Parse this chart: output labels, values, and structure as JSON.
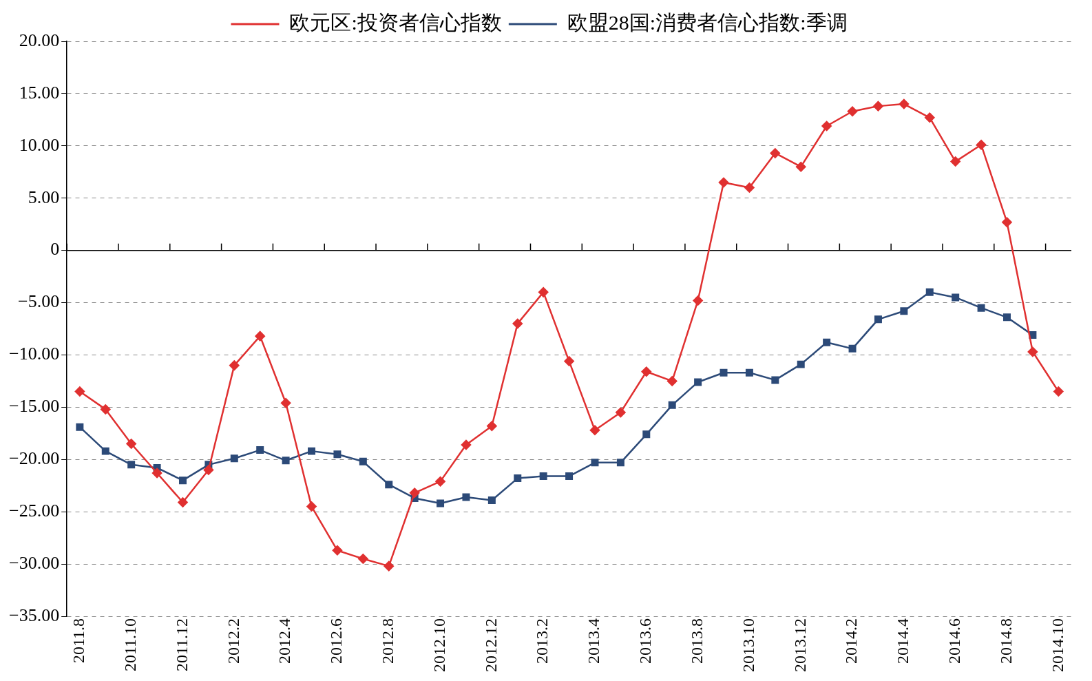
{
  "chart_data": {
    "type": "line",
    "categories": [
      "2011.8",
      null,
      "2011.10",
      null,
      "2011.12",
      null,
      "2012.2",
      null,
      "2012.4",
      null,
      "2012.6",
      null,
      "2012.8",
      null,
      "2012.10",
      null,
      "2012.12",
      null,
      "2013.2",
      null,
      "2013.4",
      null,
      "2013.6",
      null,
      "2013.8",
      null,
      "2013.10",
      null,
      "2013.12",
      null,
      "2014.2",
      null,
      "2014.4",
      null,
      "2014.6",
      null,
      "2014.8",
      null,
      "2014.10"
    ],
    "series": [
      {
        "name": "欧元区:投资者信心指数",
        "color": "#e03030",
        "marker": "diamond",
        "values": [
          -13.5,
          -15.2,
          -18.5,
          -21.3,
          -24.1,
          -21.0,
          -11.0,
          -8.2,
          -14.6,
          -24.5,
          -28.7,
          -29.5,
          -30.2,
          -23.2,
          -22.1,
          -18.6,
          -16.8,
          -7.0,
          -4.0,
          -10.6,
          -17.2,
          -15.5,
          -11.6,
          -12.5,
          -4.8,
          6.5,
          6.0,
          9.3,
          8.0,
          11.9,
          13.3,
          13.8,
          14.0,
          12.7,
          8.5,
          10.1,
          2.7,
          -9.7,
          -13.5
        ]
      },
      {
        "name": "欧盟28国:消费者信心指数:季调",
        "color": "#2c4a78",
        "marker": "square",
        "values": [
          -16.9,
          -19.2,
          -20.5,
          -20.8,
          -22.0,
          -20.5,
          -19.9,
          -19.1,
          -20.1,
          -19.2,
          -19.5,
          -20.2,
          -22.4,
          -23.7,
          -24.2,
          -23.6,
          -23.9,
          -21.8,
          -21.6,
          -21.6,
          -20.3,
          -20.3,
          -17.6,
          -14.8,
          -12.6,
          -11.7,
          -11.7,
          -12.4,
          -10.9,
          -8.8,
          -9.4,
          -6.6,
          -5.8,
          -4.0,
          -4.5,
          -5.5,
          -6.4,
          -8.1,
          null
        ]
      }
    ],
    "ylim": [
      -35,
      20
    ],
    "yticks": [
      {
        "value": -35,
        "label": "−35.00"
      },
      {
        "value": -30,
        "label": "−30.00"
      },
      {
        "value": -25,
        "label": "−25.00"
      },
      {
        "value": -20,
        "label": "−20.00"
      },
      {
        "value": -15,
        "label": "−15.00"
      },
      {
        "value": -10,
        "label": "−10.00"
      },
      {
        "value": -5,
        "label": "−5.00"
      },
      {
        "value": 0,
        "label": "0"
      },
      {
        "value": 5,
        "label": "5.00"
      },
      {
        "value": 10,
        "label": "10.00"
      },
      {
        "value": 15,
        "label": "15.00"
      },
      {
        "value": 20,
        "label": "20.00"
      }
    ],
    "grid": "y",
    "legend": "top",
    "line_style": "solid"
  }
}
